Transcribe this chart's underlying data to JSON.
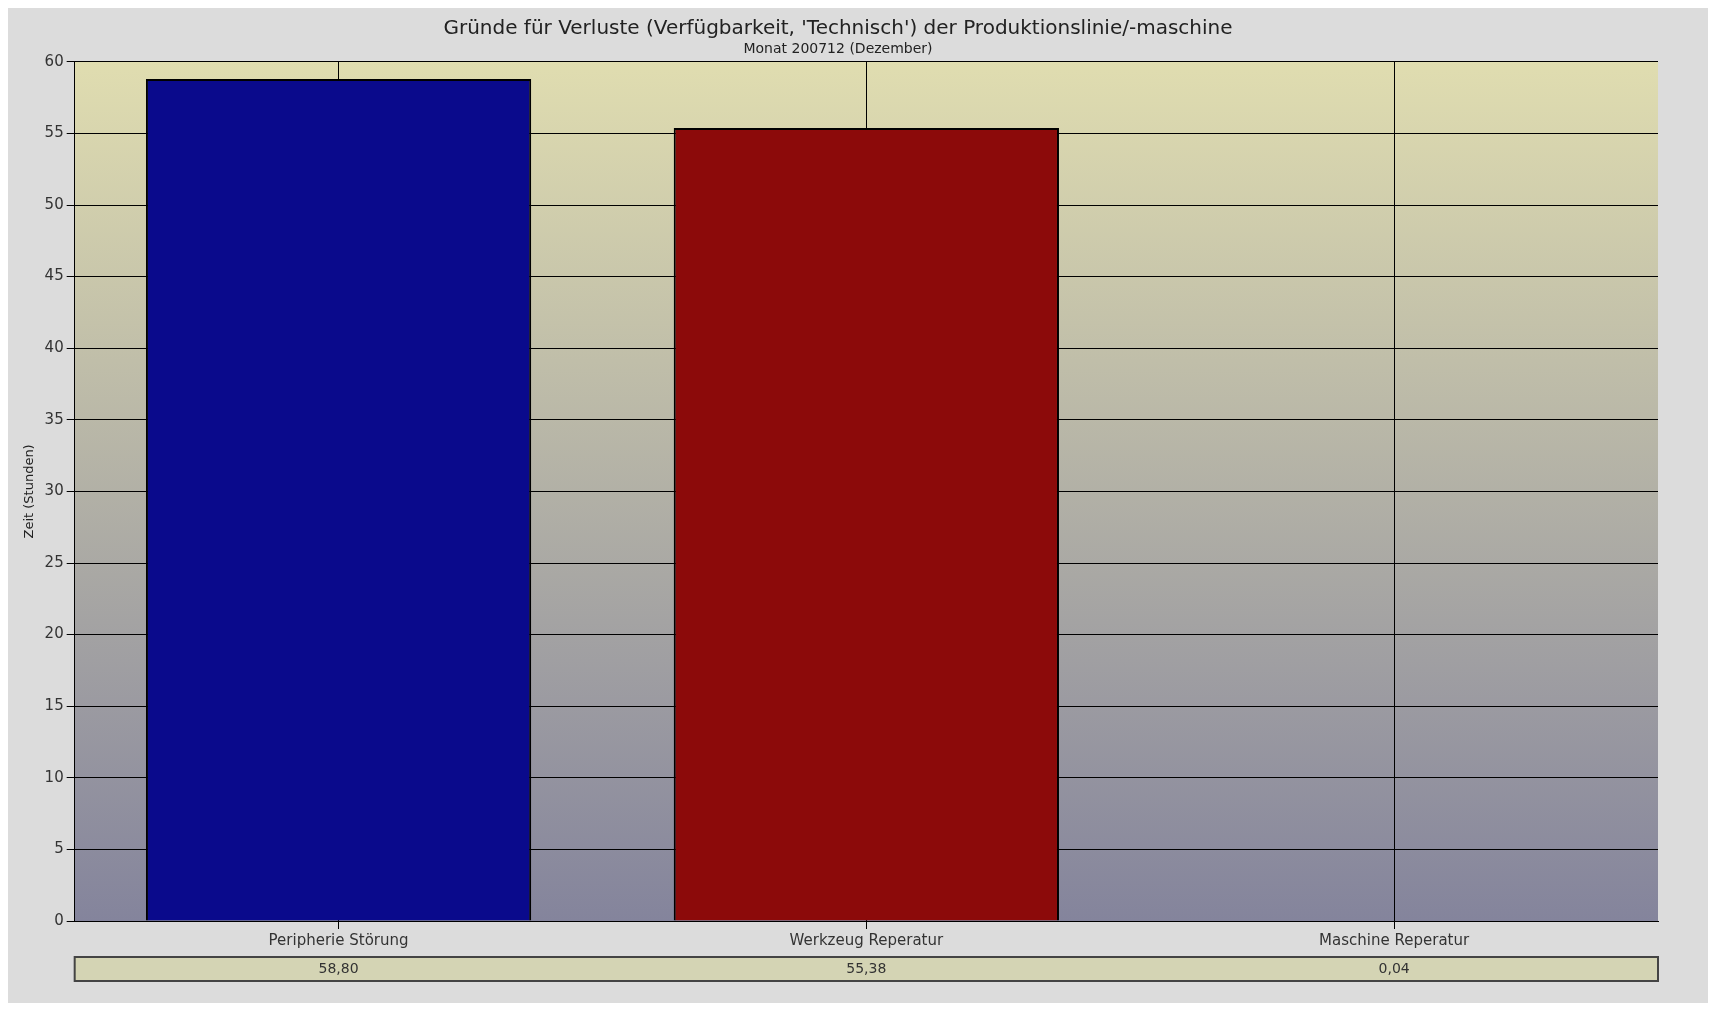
{
  "chart_data": {
    "type": "bar",
    "title": "Gründe für Verluste (Verfügbarkeit, 'Technisch') der Produktionslinie/-maschine",
    "subtitle": "Monat 200712 (Dezember)",
    "ylabel": "Zeit (Stunden)",
    "categories": [
      "Peripherie Störung",
      "Werkzeug Reperatur",
      "Maschine Reperatur"
    ],
    "values": [
      58.8,
      55.38,
      0.04
    ],
    "colors": [
      "#0a0a8c",
      "#8c0a0a",
      "#3a3a20"
    ],
    "value_labels": [
      "58,80",
      "55,38",
      "0,04"
    ],
    "ylim": [
      0,
      60
    ],
    "yticks": [
      0,
      5,
      10,
      15,
      20,
      25,
      30,
      35,
      40,
      45,
      50,
      55,
      60
    ],
    "grid": true,
    "legend": false
  }
}
